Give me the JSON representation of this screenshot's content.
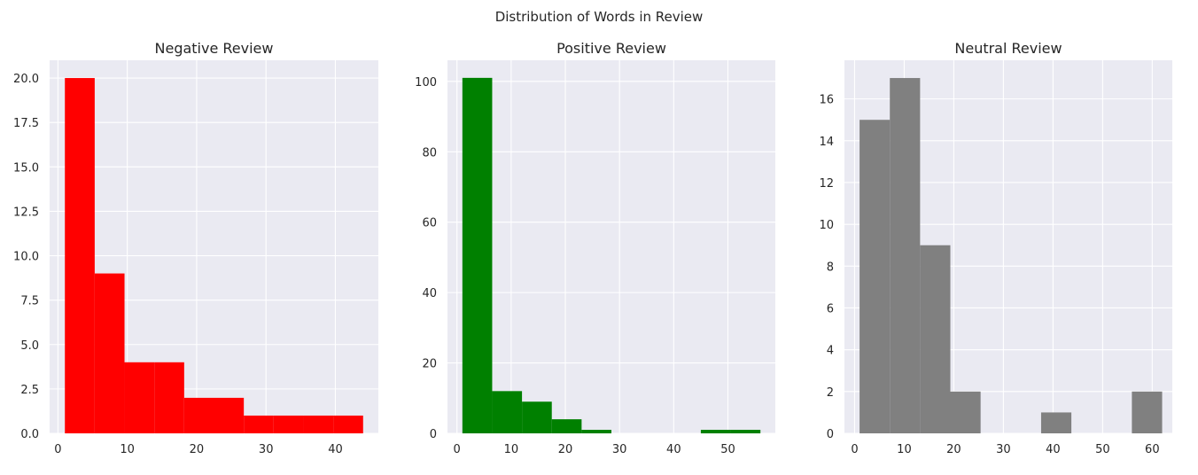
{
  "figure": {
    "title": "Distribution of Words in Review"
  },
  "style": {
    "plot_bg": "#eaeaf2",
    "grid": "#ffffff",
    "text": "#262626"
  },
  "chart_data": [
    {
      "type": "bar",
      "title": "Negative Review",
      "color": "#ff0000",
      "xlim": [
        -1.2,
        46.2
      ],
      "ylim": [
        0,
        21
      ],
      "xticks": [
        0,
        10,
        20,
        30,
        40
      ],
      "yticks": [
        0,
        2.5,
        5,
        7.5,
        10,
        12.5,
        15,
        17.5,
        20
      ],
      "ytick_labels": [
        "0.0",
        "2.5",
        "5.0",
        "7.5",
        "10.0",
        "12.5",
        "15.0",
        "17.5",
        "20.0"
      ],
      "xlabel": "",
      "ylabel": "",
      "bin_edges": [
        1,
        5.3,
        9.6,
        13.9,
        18.2,
        22.5,
        26.8,
        31.1,
        35.4,
        39.7,
        44
      ],
      "counts": [
        20,
        9,
        4,
        4,
        2,
        2,
        1,
        1,
        1,
        1
      ]
    },
    {
      "type": "bar",
      "title": "Positive Review",
      "color": "#008000",
      "xlim": [
        -1.75,
        58.75
      ],
      "ylim": [
        0,
        106
      ],
      "xticks": [
        0,
        10,
        20,
        30,
        40,
        50
      ],
      "yticks": [
        0,
        20,
        40,
        60,
        80,
        100
      ],
      "ytick_labels": [
        "0",
        "20",
        "40",
        "60",
        "80",
        "100"
      ],
      "xlabel": "",
      "ylabel": "",
      "bin_edges": [
        1,
        6.5,
        12,
        17.5,
        23,
        28.5,
        34,
        39.5,
        45,
        50.5,
        56
      ],
      "counts": [
        101,
        12,
        9,
        4,
        1,
        0,
        0,
        0,
        1,
        1
      ]
    },
    {
      "type": "bar",
      "title": "Neutral Review",
      "color": "#808080",
      "xlim": [
        -2.05,
        64.05
      ],
      "ylim": [
        0,
        17.85
      ],
      "xticks": [
        0,
        10,
        20,
        30,
        40,
        50,
        60
      ],
      "yticks": [
        0,
        2,
        4,
        6,
        8,
        10,
        12,
        14,
        16
      ],
      "ytick_labels": [
        "0",
        "2",
        "4",
        "6",
        "8",
        "10",
        "12",
        "14",
        "16"
      ],
      "xlabel": "",
      "ylabel": "",
      "bin_edges": [
        1,
        7.1,
        13.2,
        19.3,
        25.4,
        31.5,
        37.6,
        43.7,
        49.8,
        55.9,
        62
      ],
      "counts": [
        15,
        17,
        9,
        2,
        0,
        0,
        1,
        0,
        0,
        2
      ]
    }
  ]
}
